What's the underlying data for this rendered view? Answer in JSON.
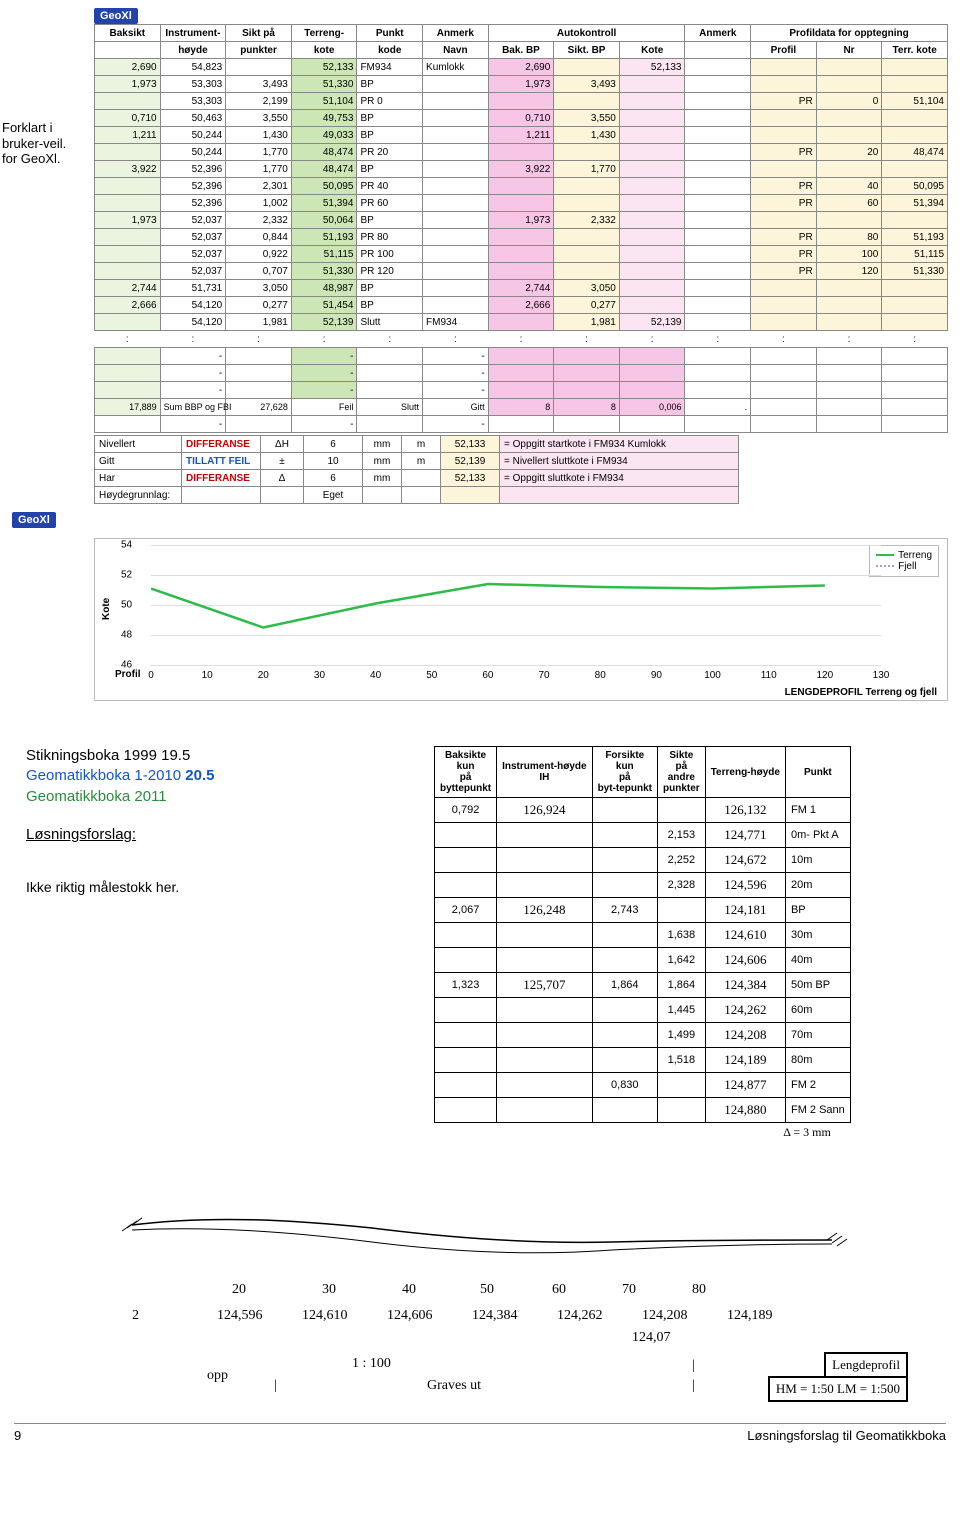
{
  "brand": "GeoXl",
  "sidenote": "Forklart i bruker-veil. for GeoXl.",
  "table1": {
    "header_groups": [
      "Baksikt",
      "Instrument-",
      "Sikt på",
      "Terreng-",
      "Punkt",
      "Anmerk",
      "Autokontroll",
      "",
      "",
      "Anmerk",
      "Profildata for opptegning",
      "",
      ""
    ],
    "header_row2": [
      "",
      "høyde",
      "punkter",
      "kote",
      "kode",
      "Navn",
      "Bak. BP",
      "Sikt. BP",
      "Kote",
      "",
      "Profil",
      "Nr",
      "Terr. kote"
    ],
    "rows": [
      [
        "2,690",
        "54,823",
        "",
        "52,133",
        "FM934",
        "Kumlokk",
        "2,690",
        "",
        "52,133",
        "",
        "",
        "",
        ""
      ],
      [
        "1,973",
        "53,303",
        "3,493",
        "51,330",
        "BP",
        "",
        "1,973",
        "3,493",
        "",
        "",
        "",
        "",
        ""
      ],
      [
        "",
        "53,303",
        "2,199",
        "51,104",
        "PR 0",
        "",
        "",
        "",
        "",
        "",
        "PR",
        "0",
        "51,104"
      ],
      [
        "0,710",
        "50,463",
        "3,550",
        "49,753",
        "BP",
        "",
        "0,710",
        "3,550",
        "",
        "",
        "",
        "",
        ""
      ],
      [
        "1,211",
        "50,244",
        "1,430",
        "49,033",
        "BP",
        "",
        "1,211",
        "1,430",
        "",
        "",
        "",
        "",
        ""
      ],
      [
        "",
        "50,244",
        "1,770",
        "48,474",
        "PR 20",
        "",
        "",
        "",
        "",
        "",
        "PR",
        "20",
        "48,474"
      ],
      [
        "3,922",
        "52,396",
        "1,770",
        "48,474",
        "BP",
        "",
        "3,922",
        "1,770",
        "",
        "",
        "",
        "",
        ""
      ],
      [
        "",
        "52,396",
        "2,301",
        "50,095",
        "PR 40",
        "",
        "",
        "",
        "",
        "",
        "PR",
        "40",
        "50,095"
      ],
      [
        "",
        "52,396",
        "1,002",
        "51,394",
        "PR 60",
        "",
        "",
        "",
        "",
        "",
        "PR",
        "60",
        "51,394"
      ],
      [
        "1,973",
        "52,037",
        "2,332",
        "50,064",
        "BP",
        "",
        "1,973",
        "2,332",
        "",
        "",
        "",
        "",
        ""
      ],
      [
        "",
        "52,037",
        "0,844",
        "51,193",
        "PR 80",
        "",
        "",
        "",
        "",
        "",
        "PR",
        "80",
        "51,193"
      ],
      [
        "",
        "52,037",
        "0,922",
        "51,115",
        "PR 100",
        "",
        "",
        "",
        "",
        "",
        "PR",
        "100",
        "51,115"
      ],
      [
        "",
        "52,037",
        "0,707",
        "51,330",
        "PR 120",
        "",
        "",
        "",
        "",
        "",
        "PR",
        "120",
        "51,330"
      ],
      [
        "2,744",
        "51,731",
        "3,050",
        "48,987",
        "BP",
        "",
        "2,744",
        "3,050",
        "",
        "",
        "",
        "",
        ""
      ],
      [
        "2,666",
        "54,120",
        "0,277",
        "51,454",
        "BP",
        "",
        "2,666",
        "0,277",
        "",
        "",
        "",
        "",
        ""
      ],
      [
        "",
        "54,120",
        "1,981",
        "52,139",
        "Slutt",
        "FM934",
        "",
        "1,981",
        "52,139",
        "",
        "",
        "",
        ""
      ]
    ],
    "row_bg": [
      [
        "green-lt",
        "",
        "",
        "green-md",
        "",
        "",
        "pink",
        "cream",
        "pink-lt",
        "",
        "cream",
        "cream",
        "cream"
      ],
      [
        "green-lt",
        "",
        "",
        "green-md",
        "",
        "",
        "pink",
        "cream",
        "pink-lt",
        "",
        "cream",
        "cream",
        "cream"
      ],
      [
        "green-lt",
        "",
        "",
        "green-md",
        "",
        "",
        "pink",
        "cream",
        "pink-lt",
        "",
        "cream",
        "cream",
        "cream"
      ],
      [
        "green-lt",
        "",
        "",
        "green-md",
        "",
        "",
        "pink",
        "cream",
        "pink-lt",
        "",
        "cream",
        "cream",
        "cream"
      ],
      [
        "green-lt",
        "",
        "",
        "green-md",
        "",
        "",
        "pink",
        "cream",
        "pink-lt",
        "",
        "cream",
        "cream",
        "cream"
      ],
      [
        "green-lt",
        "",
        "",
        "green-md",
        "",
        "",
        "pink",
        "cream",
        "pink-lt",
        "",
        "cream",
        "cream",
        "cream"
      ],
      [
        "green-lt",
        "",
        "",
        "green-md",
        "",
        "",
        "pink",
        "cream",
        "pink-lt",
        "",
        "cream",
        "cream",
        "cream"
      ],
      [
        "green-lt",
        "",
        "",
        "green-md",
        "",
        "",
        "pink",
        "cream",
        "pink-lt",
        "",
        "cream",
        "cream",
        "cream"
      ],
      [
        "green-lt",
        "",
        "",
        "green-md",
        "",
        "",
        "pink",
        "cream",
        "pink-lt",
        "",
        "cream",
        "cream",
        "cream"
      ],
      [
        "green-lt",
        "",
        "",
        "green-md",
        "",
        "",
        "pink",
        "cream",
        "pink-lt",
        "",
        "cream",
        "cream",
        "cream"
      ],
      [
        "green-lt",
        "",
        "",
        "green-md",
        "",
        "",
        "pink",
        "cream",
        "pink-lt",
        "",
        "cream",
        "cream",
        "cream"
      ],
      [
        "green-lt",
        "",
        "",
        "green-md",
        "",
        "",
        "pink",
        "cream",
        "pink-lt",
        "",
        "cream",
        "cream",
        "cream"
      ],
      [
        "green-lt",
        "",
        "",
        "green-md",
        "",
        "",
        "pink",
        "cream",
        "pink-lt",
        "",
        "cream",
        "cream",
        "cream"
      ],
      [
        "green-lt",
        "",
        "",
        "green-md",
        "",
        "",
        "pink",
        "cream",
        "pink-lt",
        "",
        "cream",
        "cream",
        "cream"
      ],
      [
        "green-lt",
        "",
        "",
        "green-md",
        "",
        "",
        "pink",
        "cream",
        "pink-lt",
        "",
        "cream",
        "cream",
        "cream"
      ],
      [
        "green-lt",
        "",
        "",
        "green-md",
        "",
        "",
        "pink",
        "cream",
        "pink-lt",
        "",
        "cream",
        "cream",
        "cream"
      ]
    ],
    "special_rows": [
      [
        "17,889",
        "Sum BBP og FBI",
        "27,628",
        "Feil",
        "Slutt",
        "Gitt",
        "8",
        "8",
        "0,006",
        "."
      ],
      [
        "",
        "-",
        "",
        "-",
        "",
        "-",
        "",
        "",
        "",
        ""
      ],
      [
        "",
        "-",
        "",
        "-",
        "",
        "-",
        "",
        "",
        "",
        ""
      ],
      [
        "",
        "-",
        "",
        "-",
        "",
        "-",
        "",
        "",
        "",
        ""
      ],
      [
        "",
        "-",
        "",
        "-",
        "",
        "-",
        "",
        "",
        "",
        ""
      ]
    ],
    "summary": [
      [
        "Nivellert",
        "DIFFERANSE",
        "ΔH",
        "6",
        "mm",
        "m",
        "52,133",
        "= Oppgitt startkote i  FM934 Kumlokk"
      ],
      [
        "Gitt",
        "TILLATT FEIL",
        "±",
        "10",
        "mm",
        "m",
        "52,139",
        "= Nivellert sluttkote i FM934"
      ],
      [
        "Har",
        "DIFFERANSE",
        "Δ",
        "6",
        "mm",
        "",
        "52,133",
        "= Oppgitt sluttkote i  FM934"
      ],
      [
        "Høydegrunnlag:",
        "",
        "",
        "Eget",
        "",
        "",
        "",
        ""
      ]
    ]
  },
  "chart": {
    "ylabel": "Kote",
    "xlabel": "Profil",
    "y_ticks": [
      46,
      48,
      50,
      52,
      54
    ],
    "x_ticks": [
      0,
      10,
      20,
      30,
      40,
      50,
      60,
      70,
      80,
      90,
      100,
      110,
      120,
      130
    ],
    "series": [
      {
        "name": "Terreng",
        "color": "#2fbb4a",
        "values": [
          51.1,
          48.5,
          50.1,
          51.4,
          51.2,
          51.1,
          51.3
        ]
      },
      {
        "name": "Fjell",
        "color": "#a0a0d0",
        "dashed": true
      }
    ],
    "caption": "LENGDEPROFIL  Terreng og fjell"
  },
  "excercise": {
    "line1": "Stikningsboka 1999  19.5",
    "line2_a": "Geomatikkboka 1-2010  ",
    "line2_b": "20.5",
    "line3": "Geomatikkboka   2011",
    "heading": "Løsningsforslag:",
    "note": "Ikke riktig målestokk her."
  },
  "handtable": {
    "headers": [
      "Baksikte kun på byttepunkt",
      "Instrument-høyde IH",
      "Forsikte kun på byt-tepunkt",
      "Sikte på andre punkter",
      "Terreng-høyde",
      "Punkt"
    ],
    "rows": [
      [
        "0,792",
        "126,924",
        "",
        "",
        "126,132",
        "FM 1"
      ],
      [
        "",
        "",
        "",
        "2,153",
        "124,771",
        "0m- Pkt A"
      ],
      [
        "",
        "",
        "",
        "2,252",
        "124,672",
        "10m"
      ],
      [
        "",
        "",
        "",
        "2,328",
        "124,596",
        "20m"
      ],
      [
        "2,067",
        "126,248",
        "2,743",
        "",
        "124,181",
        "BP"
      ],
      [
        "",
        "",
        "",
        "1,638",
        "124,610",
        "30m"
      ],
      [
        "",
        "",
        "",
        "1,642",
        "124,606",
        "40m"
      ],
      [
        "1,323",
        "125,707",
        "1,864",
        "1,864",
        "124,384",
        "50m BP"
      ],
      [
        "",
        "",
        "",
        "1,445",
        "124,262",
        "60m"
      ],
      [
        "",
        "",
        "",
        "1,499",
        "124,208",
        "70m"
      ],
      [
        "",
        "",
        "",
        "1,518",
        "124,189",
        "80m"
      ],
      [
        "",
        "",
        "0,830",
        "",
        "124,877",
        "FM 2"
      ],
      [
        "",
        "",
        "",
        "",
        "124,880",
        "FM 2 Sann"
      ]
    ],
    "delta": "Δ = 3 mm"
  },
  "sketch": {
    "x_labels": [
      "20",
      "30",
      "40",
      "50",
      "60",
      "70",
      "80"
    ],
    "y_labels": [
      "2",
      "124,596",
      "124,610",
      "124,606",
      "124,384",
      "124,262",
      "124,208",
      "124,189"
    ],
    "extra1": "124,07",
    "opp": "opp",
    "scale": "1 : 100",
    "graves": "Graves ut",
    "box1": "Lengdeprofil",
    "box2": "HM = 1:50  LM = 1:500"
  },
  "footer": {
    "page": "9",
    "title": "Løsningsforslag til Geomatikkboka"
  }
}
